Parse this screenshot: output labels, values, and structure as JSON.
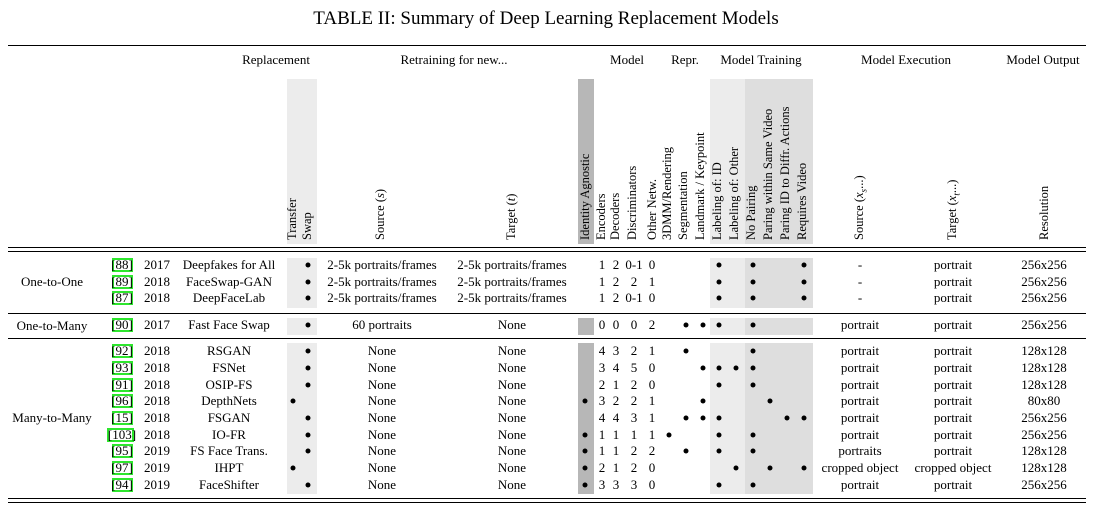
{
  "title": "TABLE II: Summary of Deep Learning Replacement Models",
  "groups": {
    "replacement": "Replacement",
    "retraining": "Retraining for new...",
    "model": "Model",
    "repr": "Repr.",
    "training": "Model Training",
    "execution": "Model Execution",
    "output": "Model Output"
  },
  "columns": {
    "transfer": "Transfer",
    "swap": "Swap",
    "source_s_a": "Source (",
    "source_s_b": "s",
    "source_s_c": ")",
    "target_t_a": "Target (",
    "target_t_b": "t",
    "target_t_c": ")",
    "identity_agnostic": "Identity Agnostic",
    "encoders": "Encoders",
    "decoders": "Decoders",
    "discriminators": "Discriminators",
    "other_netw": "Other Netw.",
    "dmm": "3DMM/Rendering",
    "segmentation": "Segmentation",
    "landmark": "Landmark / Keypoint",
    "labeling_id": "Labeling of: ID",
    "labeling_other": "Labeling of: Other",
    "no_pairing": "No Pairing",
    "paring_same": "Paring within Same Video",
    "paring_diff": "Paring ID to Diffr. Actions",
    "requires_video": "Requires Video",
    "exec_source_a": "Source (",
    "exec_source_b": "x",
    "exec_source_c": "s",
    "exec_source_d": "...)",
    "exec_target_a": "Target (",
    "exec_target_b": "x",
    "exec_target_c": "t",
    "exec_target_d": "...)",
    "resolution": "Resolution"
  },
  "categories": {
    "one_to_one": "One-to-One",
    "one_to_many": "One-to-Many",
    "many_to_many": "Many-to-Many"
  },
  "rows": [
    {
      "ref": "[88]",
      "year": "2017",
      "name": "Deepfakes for All",
      "source": "2-5k portraits/frames",
      "target": "2-5k portraits/frames",
      "enc": "1",
      "dec": "2",
      "disc": "0-1",
      "other": "0",
      "exec_src": "-",
      "exec_tgt": "portrait",
      "res": "256x256",
      "swap": true,
      "transfer": false,
      "ident": false,
      "dmm": false,
      "seg": false,
      "land": false,
      "lab_id": true,
      "lab_other": false,
      "no_pair": true,
      "pair_same": false,
      "pair_diff": false,
      "video": true
    },
    {
      "ref": "[89]",
      "year": "2018",
      "name": "FaceSwap-GAN",
      "source": "2-5k portraits/frames",
      "target": "2-5k portraits/frames",
      "enc": "1",
      "dec": "2",
      "disc": "2",
      "other": "1",
      "exec_src": "-",
      "exec_tgt": "portrait",
      "res": "256x256",
      "swap": true,
      "transfer": false,
      "ident": false,
      "dmm": false,
      "seg": false,
      "land": false,
      "lab_id": true,
      "lab_other": false,
      "no_pair": true,
      "pair_same": false,
      "pair_diff": false,
      "video": true
    },
    {
      "ref": "[87]",
      "year": "2018",
      "name": "DeepFaceLab",
      "source": "2-5k portraits/frames",
      "target": "2-5k portraits/frames",
      "enc": "1",
      "dec": "2",
      "disc": "0-1",
      "other": "0",
      "exec_src": "-",
      "exec_tgt": "portrait",
      "res": "256x256",
      "swap": true,
      "transfer": false,
      "ident": false,
      "dmm": false,
      "seg": false,
      "land": false,
      "lab_id": true,
      "lab_other": false,
      "no_pair": true,
      "pair_same": false,
      "pair_diff": false,
      "video": true
    },
    {
      "ref": "[90]",
      "year": "2017",
      "name": "Fast Face Swap",
      "source": "60 portraits",
      "target": "None",
      "enc": "0",
      "dec": "0",
      "disc": "0",
      "other": "2",
      "exec_src": "portrait",
      "exec_tgt": "portrait",
      "res": "256x256",
      "swap": true,
      "transfer": false,
      "ident": false,
      "dmm": false,
      "seg": true,
      "land": true,
      "lab_id": true,
      "lab_other": false,
      "no_pair": true,
      "pair_same": false,
      "pair_diff": false,
      "video": false
    },
    {
      "ref": "[92]",
      "year": "2018",
      "name": "RSGAN",
      "source": "None",
      "target": "None",
      "enc": "4",
      "dec": "3",
      "disc": "2",
      "other": "1",
      "exec_src": "portrait",
      "exec_tgt": "portrait",
      "res": "128x128",
      "swap": true,
      "transfer": false,
      "ident": false,
      "dmm": false,
      "seg": true,
      "land": false,
      "lab_id": false,
      "lab_other": false,
      "no_pair": true,
      "pair_same": false,
      "pair_diff": false,
      "video": false
    },
    {
      "ref": "[93]",
      "year": "2018",
      "name": "FSNet",
      "source": "None",
      "target": "None",
      "enc": "3",
      "dec": "4",
      "disc": "5",
      "other": "0",
      "exec_src": "portrait",
      "exec_tgt": "portrait",
      "res": "128x128",
      "swap": true,
      "transfer": false,
      "ident": false,
      "dmm": false,
      "seg": false,
      "land": true,
      "lab_id": true,
      "lab_other": true,
      "no_pair": true,
      "pair_same": false,
      "pair_diff": false,
      "video": false
    },
    {
      "ref": "[91]",
      "year": "2018",
      "name": "OSIP-FS",
      "source": "None",
      "target": "None",
      "enc": "2",
      "dec": "1",
      "disc": "2",
      "other": "0",
      "exec_src": "portrait",
      "exec_tgt": "portrait",
      "res": "128x128",
      "swap": true,
      "transfer": false,
      "ident": false,
      "dmm": false,
      "seg": false,
      "land": false,
      "lab_id": true,
      "lab_other": false,
      "no_pair": true,
      "pair_same": false,
      "pair_diff": false,
      "video": false
    },
    {
      "ref": "[96]",
      "year": "2018",
      "name": "DepthNets",
      "source": "None",
      "target": "None",
      "enc": "3",
      "dec": "2",
      "disc": "2",
      "other": "1",
      "exec_src": "portrait",
      "exec_tgt": "portrait",
      "res": "80x80",
      "swap": false,
      "transfer": true,
      "ident": true,
      "dmm": false,
      "seg": false,
      "land": true,
      "lab_id": false,
      "lab_other": false,
      "no_pair": false,
      "pair_same": true,
      "pair_diff": false,
      "video": false
    },
    {
      "ref": "[15]",
      "year": "2018",
      "name": "FSGAN",
      "source": "None",
      "target": "None",
      "enc": "4",
      "dec": "4",
      "disc": "3",
      "other": "1",
      "exec_src": "portrait",
      "exec_tgt": "portrait",
      "res": "256x256",
      "swap": true,
      "transfer": false,
      "ident": false,
      "dmm": false,
      "seg": true,
      "land": true,
      "lab_id": true,
      "lab_other": false,
      "no_pair": false,
      "pair_same": false,
      "pair_diff": true,
      "video": true
    },
    {
      "ref": "[103]",
      "year": "2018",
      "name": "IO-FR",
      "source": "None",
      "target": "None",
      "enc": "1",
      "dec": "1",
      "disc": "1",
      "other": "1",
      "exec_src": "portrait",
      "exec_tgt": "portrait",
      "res": "256x256",
      "swap": true,
      "transfer": false,
      "ident": true,
      "dmm": true,
      "seg": false,
      "land": false,
      "lab_id": true,
      "lab_other": false,
      "no_pair": true,
      "pair_same": false,
      "pair_diff": false,
      "video": false
    },
    {
      "ref": "[95]",
      "year": "2019",
      "name": "FS Face Trans.",
      "source": "None",
      "target": "None",
      "enc": "1",
      "dec": "1",
      "disc": "2",
      "other": "2",
      "exec_src": "portraits",
      "exec_tgt": "portrait",
      "res": "128x128",
      "swap": true,
      "transfer": false,
      "ident": true,
      "dmm": false,
      "seg": true,
      "land": false,
      "lab_id": true,
      "lab_other": false,
      "no_pair": true,
      "pair_same": false,
      "pair_diff": false,
      "video": false
    },
    {
      "ref": "[97]",
      "year": "2019",
      "name": "IHPT",
      "source": "None",
      "target": "None",
      "enc": "2",
      "dec": "1",
      "disc": "2",
      "other": "0",
      "exec_src": "cropped object",
      "exec_tgt": "cropped object",
      "res": "128x128",
      "swap": false,
      "transfer": true,
      "ident": true,
      "dmm": false,
      "seg": false,
      "land": false,
      "lab_id": false,
      "lab_other": true,
      "no_pair": false,
      "pair_same": true,
      "pair_diff": false,
      "video": true
    },
    {
      "ref": "[94]",
      "year": "2019",
      "name": "FaceShifter",
      "source": "None",
      "target": "None",
      "enc": "3",
      "dec": "3",
      "disc": "3",
      "other": "0",
      "exec_src": "portrait",
      "exec_tgt": "portrait",
      "res": "256x256",
      "swap": true,
      "transfer": false,
      "ident": true,
      "dmm": false,
      "seg": false,
      "land": false,
      "lab_id": true,
      "lab_other": false,
      "no_pair": true,
      "pair_same": false,
      "pair_diff": false,
      "video": false
    }
  ]
}
